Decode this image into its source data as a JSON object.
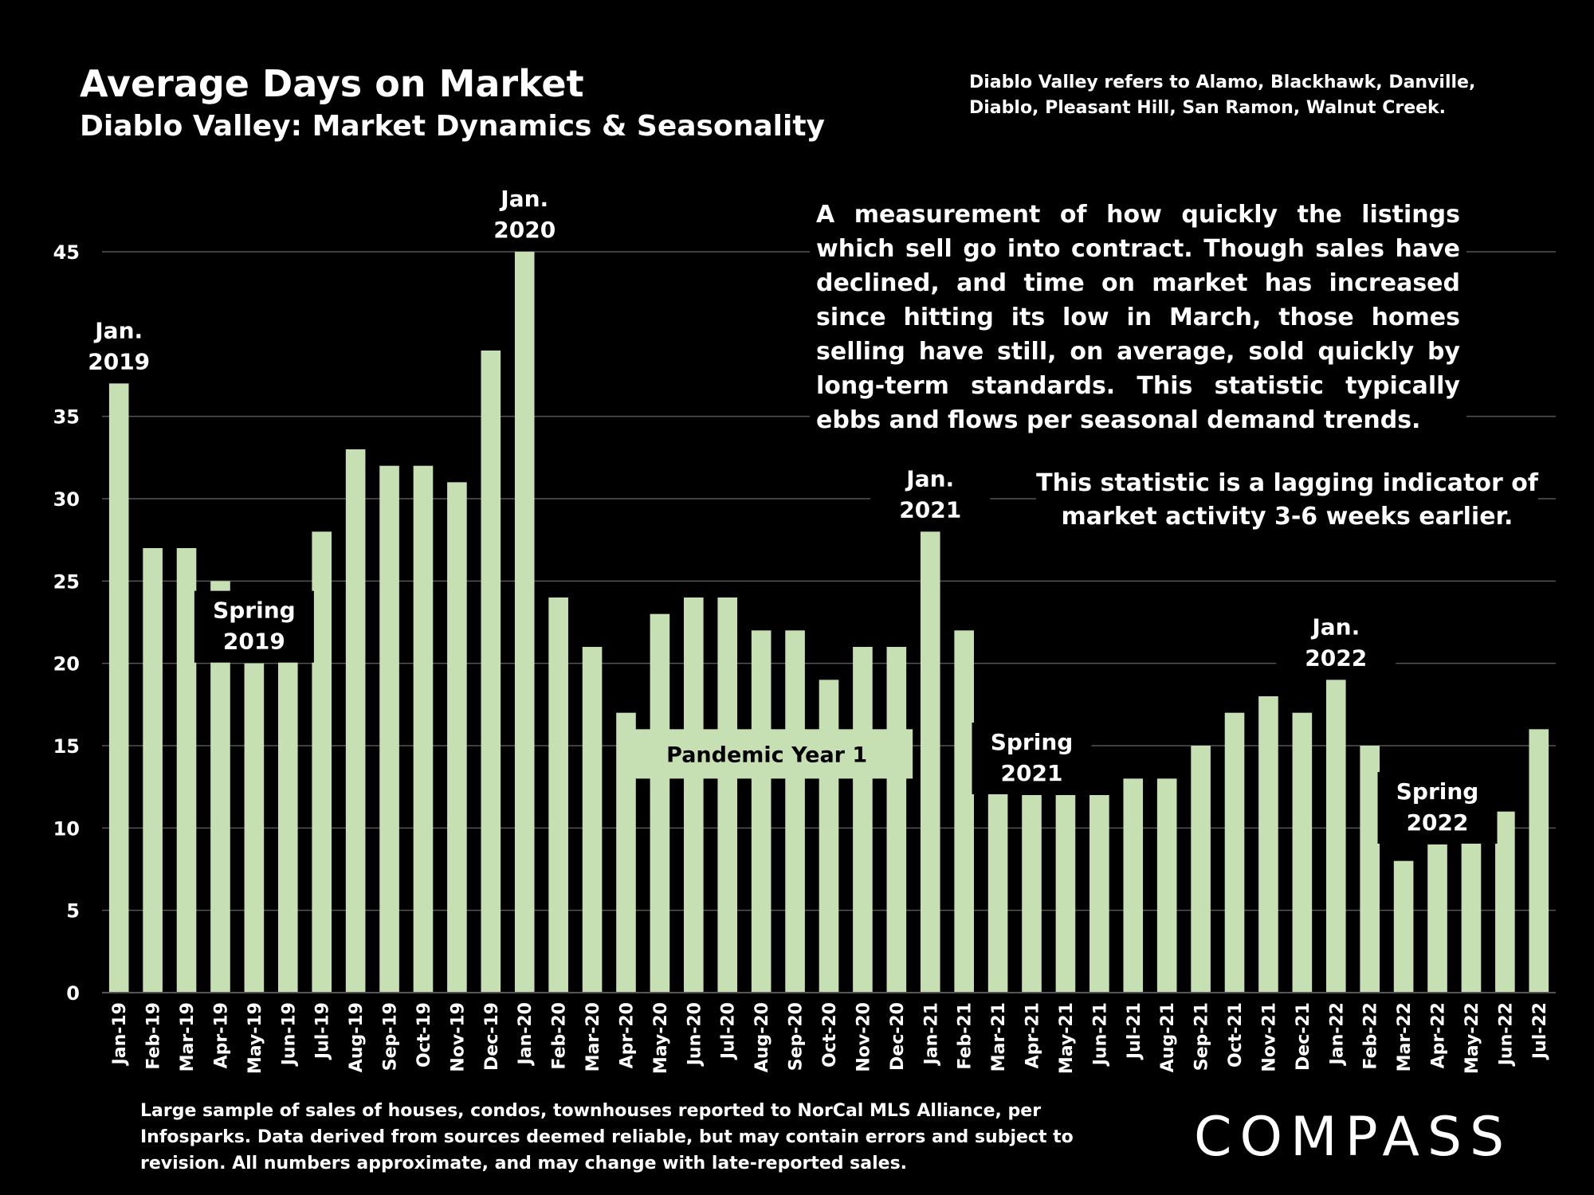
{
  "title": "Average Days on Market",
  "subtitle": "Diablo Valley: Market Dynamics & Seasonality",
  "region_note": "Diablo Valley refers to Alamo, Blackhawk, Danville, Diablo, Pleasant Hill, San Ramon, Walnut Creek.",
  "description": "A measurement of how quickly the listings which sell go into contract. Though sales have declined, and time on market has increased since hitting its low in March, those homes selling have still, on average, sold quickly by long-term standards. This statistic typically ebbs and flows per seasonal demand trends.",
  "lag_note": "This statistic is a lagging indicator of market activity 3-6 weeks earlier.",
  "footnote": "Large sample of sales of houses, condos, townhouses reported to NorCal MLS Alliance, per Infosparks. Data derived from sources deemed reliable, but may contain errors and subject to revision. All numbers approximate, and may change with late-reported sales.",
  "logo": "COMPASS",
  "colors": {
    "bar": "#c6e0b4",
    "background": "#000000",
    "grid": "#555555",
    "text": "#ffffff"
  },
  "chart_data": {
    "type": "bar",
    "categories": [
      "Jan-19",
      "Feb-19",
      "Mar-19",
      "Apr-19",
      "May-19",
      "Jun-19",
      "Jul-19",
      "Aug-19",
      "Sep-19",
      "Oct-19",
      "Nov-19",
      "Dec-19",
      "Jan-20",
      "Feb-20",
      "Mar-20",
      "Apr-20",
      "May-20",
      "Jun-20",
      "Jul-20",
      "Aug-20",
      "Sep-20",
      "Oct-20",
      "Nov-20",
      "Dec-20",
      "Jan-21",
      "Feb-21",
      "Mar-21",
      "Apr-21",
      "May-21",
      "Jun-21",
      "Jul-21",
      "Aug-21",
      "Sep-21",
      "Oct-21",
      "Nov-21",
      "Dec-21",
      "Jan-22",
      "Feb-22",
      "Mar-22",
      "Apr-22",
      "May-22",
      "Jun-22",
      "Jul-22"
    ],
    "values": [
      37,
      27,
      27,
      25,
      20,
      22,
      28,
      33,
      32,
      32,
      31,
      39,
      45,
      24,
      21,
      17,
      23,
      24,
      24,
      22,
      22,
      19,
      21,
      21,
      28,
      22,
      13,
      12,
      12,
      12,
      13,
      13,
      15,
      17,
      18,
      17,
      19,
      15,
      8,
      9,
      10,
      11,
      16
    ],
    "yticks": [
      0,
      5,
      10,
      15,
      20,
      25,
      30,
      35,
      45
    ],
    "ylim": [
      0,
      45
    ],
    "grid": true,
    "annotations": [
      {
        "index": 0,
        "lines": [
          "Jan.",
          "2019"
        ]
      },
      {
        "index": 4,
        "lines": [
          "Spring",
          "2019"
        ]
      },
      {
        "index": 12,
        "lines": [
          "Jan.",
          "2020"
        ]
      },
      {
        "index": 24,
        "lines": [
          "Jan.",
          "2021"
        ]
      },
      {
        "index": 27,
        "lines": [
          "Spring",
          "2021"
        ]
      },
      {
        "index": 36,
        "lines": [
          "Jan.",
          "2022"
        ]
      },
      {
        "index": 39,
        "lines": [
          "Spring",
          "2022"
        ]
      }
    ],
    "range_label": {
      "text": "Pandemic Year 1",
      "from_index": 15,
      "to_index": 23
    }
  }
}
